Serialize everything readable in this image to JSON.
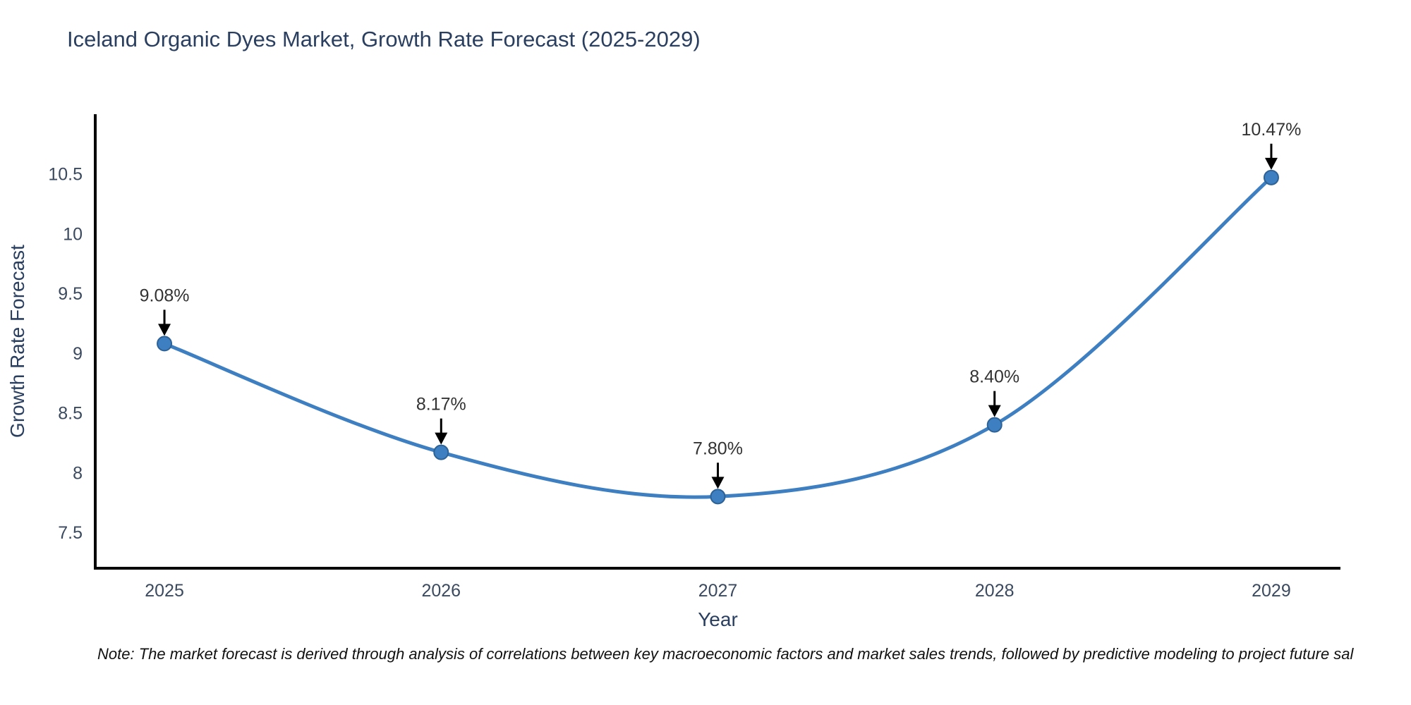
{
  "title": "Iceland Organic Dyes Market, Growth Rate Forecast (2025-2029)",
  "note": "Note: The market forecast is derived through analysis of correlations between key macroeconomic factors and market sales trends, followed by predictive modeling to project future sal",
  "chart_data": {
    "type": "line",
    "x": [
      2025,
      2026,
      2027,
      2028,
      2029
    ],
    "y": [
      9.08,
      8.17,
      7.8,
      8.4,
      10.47
    ],
    "point_labels": [
      "9.08%",
      "8.17%",
      "7.80%",
      "8.40%",
      "10.47%"
    ],
    "title": "Iceland Organic Dyes Market, Growth Rate Forecast (2025-2029)",
    "xlabel": "Year",
    "ylabel": "Growth Rate Forecast",
    "xticklabels": [
      "2025",
      "2026",
      "2027",
      "2028",
      "2029"
    ],
    "yticks": [
      7.5,
      8,
      8.5,
      9,
      9.5,
      10,
      10.5
    ],
    "yticklabels": [
      "7.5",
      "8",
      "8.5",
      "9",
      "9.5",
      "10",
      "10.5"
    ],
    "xlim": [
      2024.75,
      2029.25
    ],
    "ylim": [
      7.2,
      11.0
    ],
    "grid": false,
    "legend": "none",
    "line_smoothing": true,
    "colors": {
      "line": "#3e7fc1",
      "marker_fill": "#3e7fc1",
      "marker_edge": "#2d6296",
      "axis": "#000000",
      "tick_text": "#3b4а5f",
      "text": "#2a3f5f",
      "annotation_text": "#333333",
      "arrow": "#000000"
    }
  }
}
